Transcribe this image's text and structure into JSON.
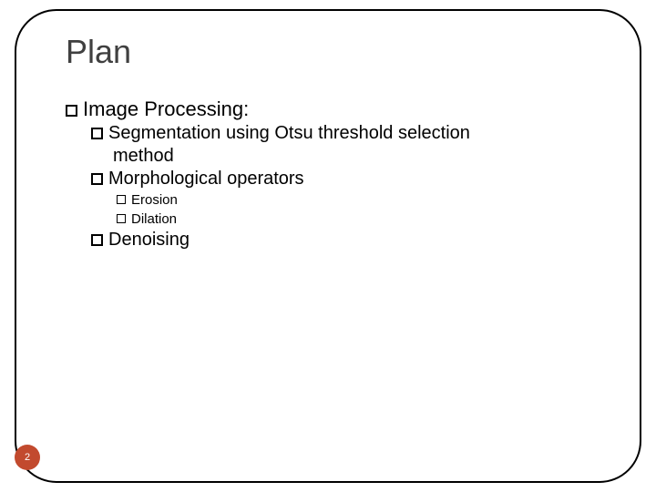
{
  "title": "Plan",
  "tree": {
    "l1": "Image Processing:",
    "l2a_line1": "Segmentation using Otsu  threshold selection",
    "l2a_line2": "method",
    "l2b": "Morphological operators",
    "l3a": "Erosion",
    "l3b": "Dilation",
    "l2c": "Denoising"
  },
  "page_number": "2",
  "colors": {
    "frame_border": "#000000",
    "title_text": "#404040",
    "body_text": "#000000",
    "badge_bg": "#c24a2e",
    "badge_text": "#ffffff",
    "background": "#ffffff"
  },
  "typography": {
    "title_fontsize": 36,
    "l1_fontsize": 22,
    "l2_fontsize": 20,
    "l3_fontsize": 15,
    "badge_fontsize": 11,
    "font_family": "Arial"
  },
  "layout": {
    "slide_width": 720,
    "slide_height": 540,
    "frame_radius": 46,
    "indent_l2": 28,
    "indent_l3": 56
  }
}
